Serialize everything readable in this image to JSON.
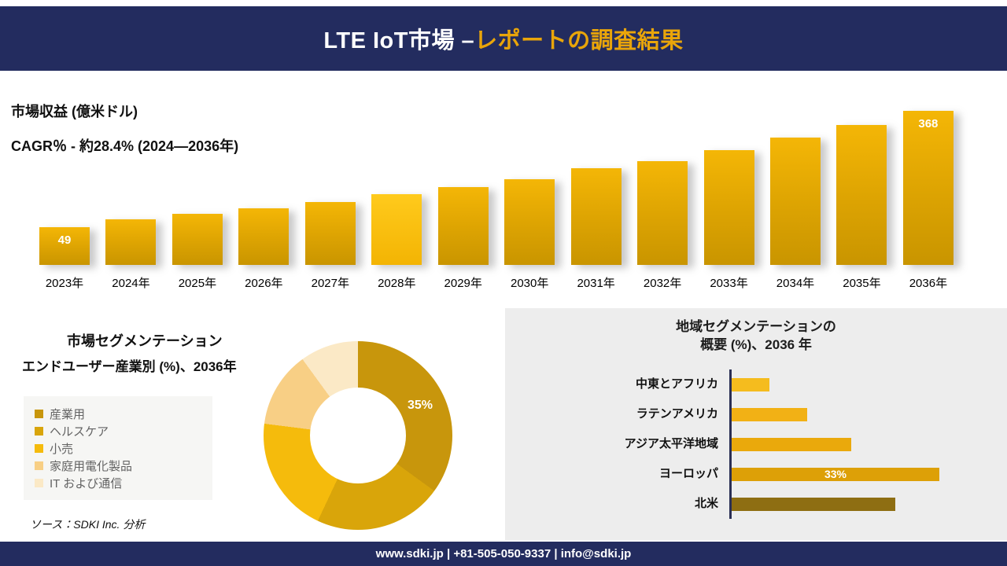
{
  "colors": {
    "navy": "#232C5F",
    "gold_accent": "#E9A50A",
    "bar_gradient_top": "#F4B606",
    "bar_gradient_bottom": "#C99500",
    "panel_gray": "#EDEDED",
    "legend_bg": "#F6F6F4"
  },
  "header": {
    "title_white": "LTE IoT市場 –",
    "title_gold": "レポートの調査結果"
  },
  "revenue": {
    "units_label": "市場収益 (億米ドル)",
    "cagr_label": "CAGR％ - 約28.4% (2024―2036年)"
  },
  "segmentation": {
    "title": "市場セグメンテーション",
    "subtitle": "エンドユーザー産業別 (%)、2036年",
    "donut_label": "35%",
    "source": "ソース：SDKI Inc. 分析"
  },
  "region": {
    "title_line1": "地域セグメンテーションの",
    "title_line2": "概要 (%)、2036 年"
  },
  "footer": {
    "text": "www.sdki.jp | +81-505-050-9337 | info@sdki.jp"
  },
  "chart_data": [
    {
      "type": "bar",
      "title": "市場収益 (億米ドル)",
      "subtitle": "CAGR％ - 約28.4% (2024―2036年)",
      "categories": [
        "2023年",
        "2024年",
        "2025年",
        "2026年",
        "2027年",
        "2028年",
        "2029年",
        "2030年",
        "2031年",
        "2032年",
        "2033年",
        "2034年",
        "2035年",
        "2036年"
      ],
      "values": [
        49,
        70,
        85,
        100,
        118,
        140,
        160,
        180,
        210,
        230,
        260,
        295,
        330,
        368
      ],
      "bar_labels": {
        "0": "49",
        "13": "368"
      },
      "highlight_index": 5,
      "xlabel": "",
      "ylabel": "市場収益 (億米ドル)",
      "ylim": [
        0,
        400
      ],
      "grid": false,
      "legend_position": "none"
    },
    {
      "type": "pie",
      "donut": true,
      "title": "市場セグメンテーション エンドユーザー産業別 (%)、2036年",
      "labels": [
        "産業用",
        "ヘルスケア",
        "小売",
        "家庭用電化製品",
        "IT および通信"
      ],
      "values": [
        35,
        22,
        20,
        13,
        10
      ],
      "colors": [
        "#C8960C",
        "#D9A50A",
        "#F5BB0C",
        "#F8CF85",
        "#FBE9C6"
      ],
      "shown_label": {
        "segment": "産業用",
        "text": "35%"
      },
      "legend_position": "left"
    },
    {
      "type": "bar",
      "orientation": "horizontal",
      "title": "地域セグメンテーションの概要 (%)、2036 年",
      "categories": [
        "中東とアフリカ",
        "ラテンアメリカ",
        "アジア太平洋地域",
        "ヨーロッパ",
        "北米"
      ],
      "values": [
        6,
        12,
        19,
        33,
        26
      ],
      "colors": [
        "#F5BC1E",
        "#F2B115",
        "#EAA90C",
        "#DDA007",
        "#8E6E12"
      ],
      "value_labels": {
        "3": "33%"
      },
      "xlim": [
        0,
        40
      ],
      "grid": false,
      "legend_position": "none"
    }
  ]
}
